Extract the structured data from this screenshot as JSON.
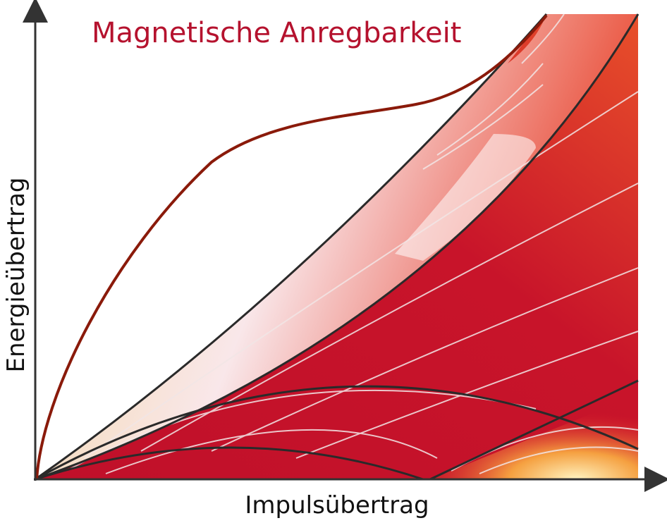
{
  "title": "Magnetische Anregbarkeit",
  "x_axis_label": "Impulsübertrag",
  "y_axis_label": "Energieübertrag"
}
